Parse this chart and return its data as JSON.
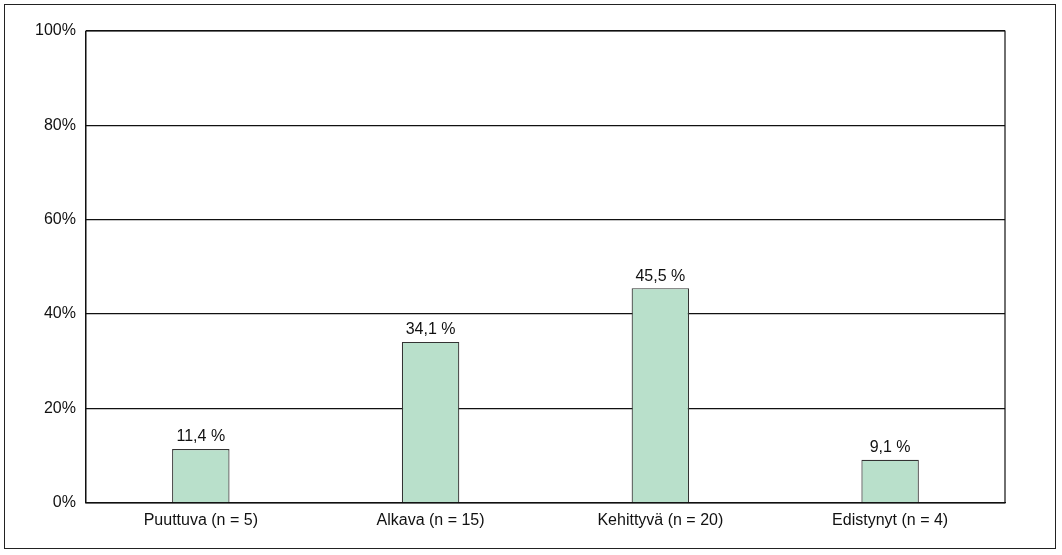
{
  "chart_data": {
    "type": "bar",
    "categories": [
      "Puuttuva (n = 5)",
      "Alkava (n = 15)",
      "Kehittyvä (n = 20)",
      "Edistynyt (n = 4)"
    ],
    "values": [
      11.4,
      34.1,
      45.5,
      9.1
    ],
    "value_labels": [
      "11,4 %",
      "34,1 %",
      "45,5 %",
      "9,1 %"
    ],
    "color": "#b9e0cb",
    "ylim": [
      0,
      100
    ],
    "yticks": [
      {
        "value": 0,
        "label": "0%"
      },
      {
        "value": 20,
        "label": "20%"
      },
      {
        "value": 40,
        "label": "40%"
      },
      {
        "value": 60,
        "label": "60%"
      },
      {
        "value": 80,
        "label": "80%"
      },
      {
        "value": 100,
        "label": "100%"
      }
    ],
    "grid": "y",
    "legend": false
  }
}
